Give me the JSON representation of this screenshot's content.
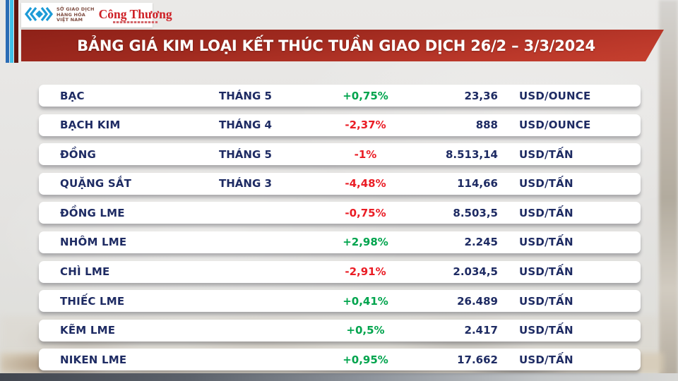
{
  "header": {
    "exchange_logo_lines": [
      "SỞ GIAO DỊCH",
      "HÀNG HÓA",
      "VIỆT NAM"
    ],
    "congthuong_logo": "Công Thương",
    "banner_title": "BẢNG GIÁ KIM LOẠI KẾT THÚC TUẦN GIAO DỊCH 26/2 – 3/3/2024"
  },
  "colors": {
    "up_green": "#00a44d",
    "down_red": "#ea1d25",
    "text_navy": "#1e2b63",
    "banner_red": "#a02a1f"
  },
  "chart_data": {
    "type": "table",
    "title": "BẢNG GIÁ KIM LOẠI KẾT THÚC TUẦN GIAO DỊCH 26/2 – 3/3/2024",
    "columns": [
      "commodity",
      "contract_month",
      "weekly_change_pct",
      "price",
      "unit"
    ],
    "rows": [
      {
        "name": "BẠC",
        "month": "THÁNG 5",
        "change": "+0,75%",
        "direction": "up",
        "price": "23,36",
        "unit": "USD/OUNCE"
      },
      {
        "name": "BẠCH KIM",
        "month": "THÁNG 4",
        "change": "-2,37%",
        "direction": "down",
        "price": "888",
        "unit": "USD/OUNCE"
      },
      {
        "name": "ĐỒNG",
        "month": "THÁNG 5",
        "change": "-1%",
        "direction": "down",
        "price": "8.513,14",
        "unit": "USD/TẤN"
      },
      {
        "name": "QUẶNG SẮT",
        "month": "THÁNG 3",
        "change": "-4,48%",
        "direction": "down",
        "price": "114,66",
        "unit": "USD/TẤN"
      },
      {
        "name": "ĐỒNG LME",
        "month": "",
        "change": "-0,75%",
        "direction": "down",
        "price": "8.503,5",
        "unit": "USD/TẤN"
      },
      {
        "name": "NHÔM LME",
        "month": "",
        "change": "+2,98%",
        "direction": "up",
        "price": "2.245",
        "unit": "USD/TẤN"
      },
      {
        "name": "CHÌ LME",
        "month": "",
        "change": "-2,91%",
        "direction": "down",
        "price": "2.034,5",
        "unit": "USD/TẤN"
      },
      {
        "name": "THIẾC LME",
        "month": "",
        "change": "+0,41%",
        "direction": "up",
        "price": "26.489",
        "unit": "USD/TẤN"
      },
      {
        "name": "KẼM LME",
        "month": "",
        "change": "+0,5%",
        "direction": "up",
        "price": "2.417",
        "unit": "USD/TẤN"
      },
      {
        "name": "NIKEN LME",
        "month": "",
        "change": "+0,95%",
        "direction": "up",
        "price": "17.662",
        "unit": "USD/TẤN"
      }
    ]
  }
}
